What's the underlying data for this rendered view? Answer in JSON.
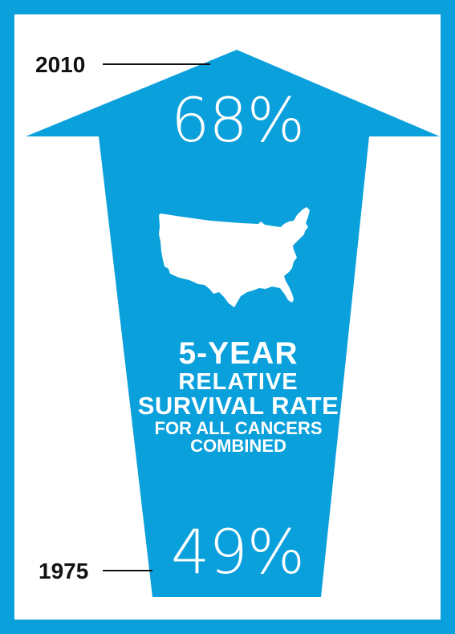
{
  "infographic": {
    "top_year": "2010",
    "top_percent": "68%",
    "bottom_year": "1975",
    "bottom_percent": "49%",
    "headline_lines": [
      "5-YEAR",
      "RELATIVE",
      "SURVIVAL RATE",
      "FOR ALL CANCERS",
      "COMBINED"
    ],
    "map_icon": "usa-map-icon"
  },
  "colors": {
    "accent": "#0aa0dc",
    "text_dark": "#111111",
    "text_light": "#ffffff",
    "background": "#ffffff"
  }
}
